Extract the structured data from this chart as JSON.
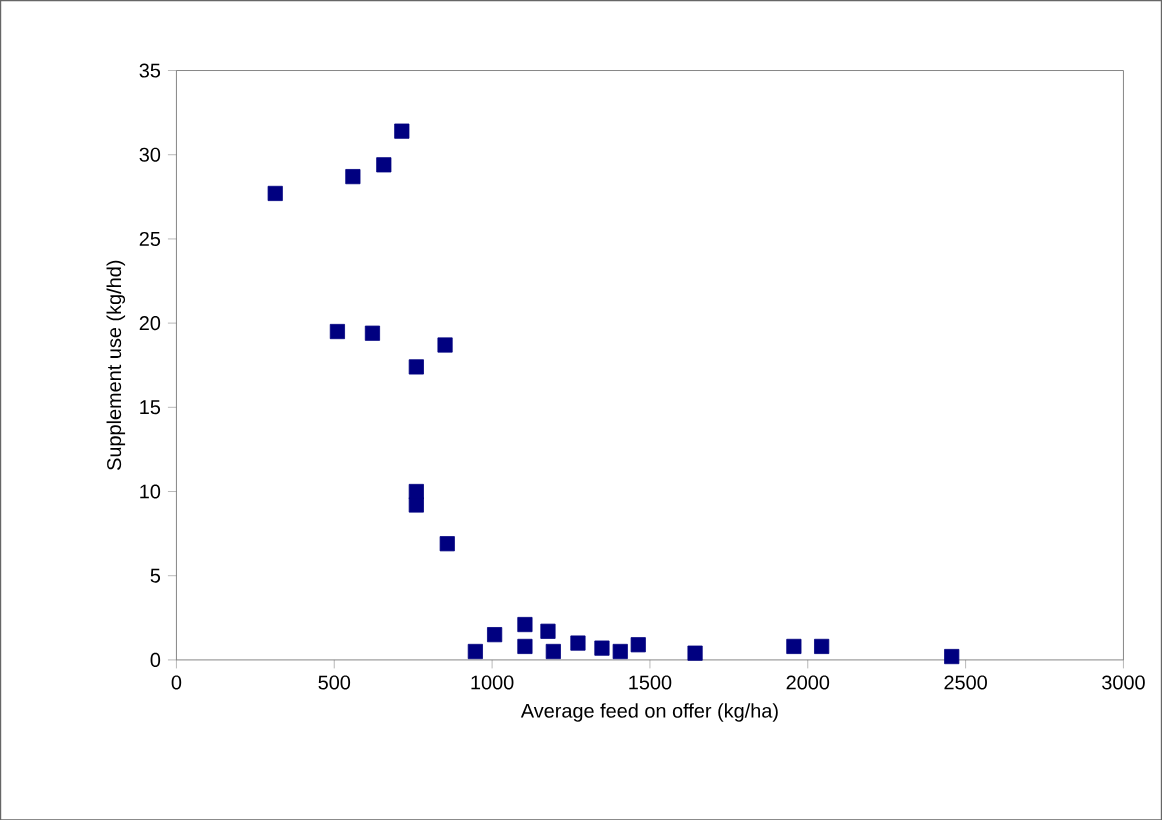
{
  "chart_data": {
    "type": "scatter",
    "xlabel": "Average feed on offer (kg/ha)",
    "ylabel": "Supplement use (kg/hd)",
    "x": [
      313,
      559,
      657,
      714,
      510,
      621,
      760,
      851,
      760,
      760,
      858,
      947,
      1008,
      1104,
      1104,
      1177,
      1194,
      1272,
      1348,
      1406,
      1463,
      1643,
      1956,
      2044,
      2456
    ],
    "values": [
      27.7,
      28.7,
      29.4,
      31.4,
      19.5,
      19.4,
      17.4,
      18.7,
      10.0,
      9.2,
      6.9,
      0.5,
      1.5,
      2.1,
      0.8,
      1.7,
      0.5,
      1.0,
      0.7,
      0.5,
      0.9,
      0.4,
      0.8,
      0.8,
      0.2
    ],
    "color": "#000080",
    "marker": "square",
    "xlim": [
      0,
      3000
    ],
    "xticks": [
      0,
      500,
      1000,
      1500,
      2000,
      2500,
      3000
    ],
    "ylim": [
      0,
      35
    ],
    "yticks": [
      0,
      5,
      10,
      15,
      20,
      25,
      30,
      35
    ],
    "grid": false
  }
}
